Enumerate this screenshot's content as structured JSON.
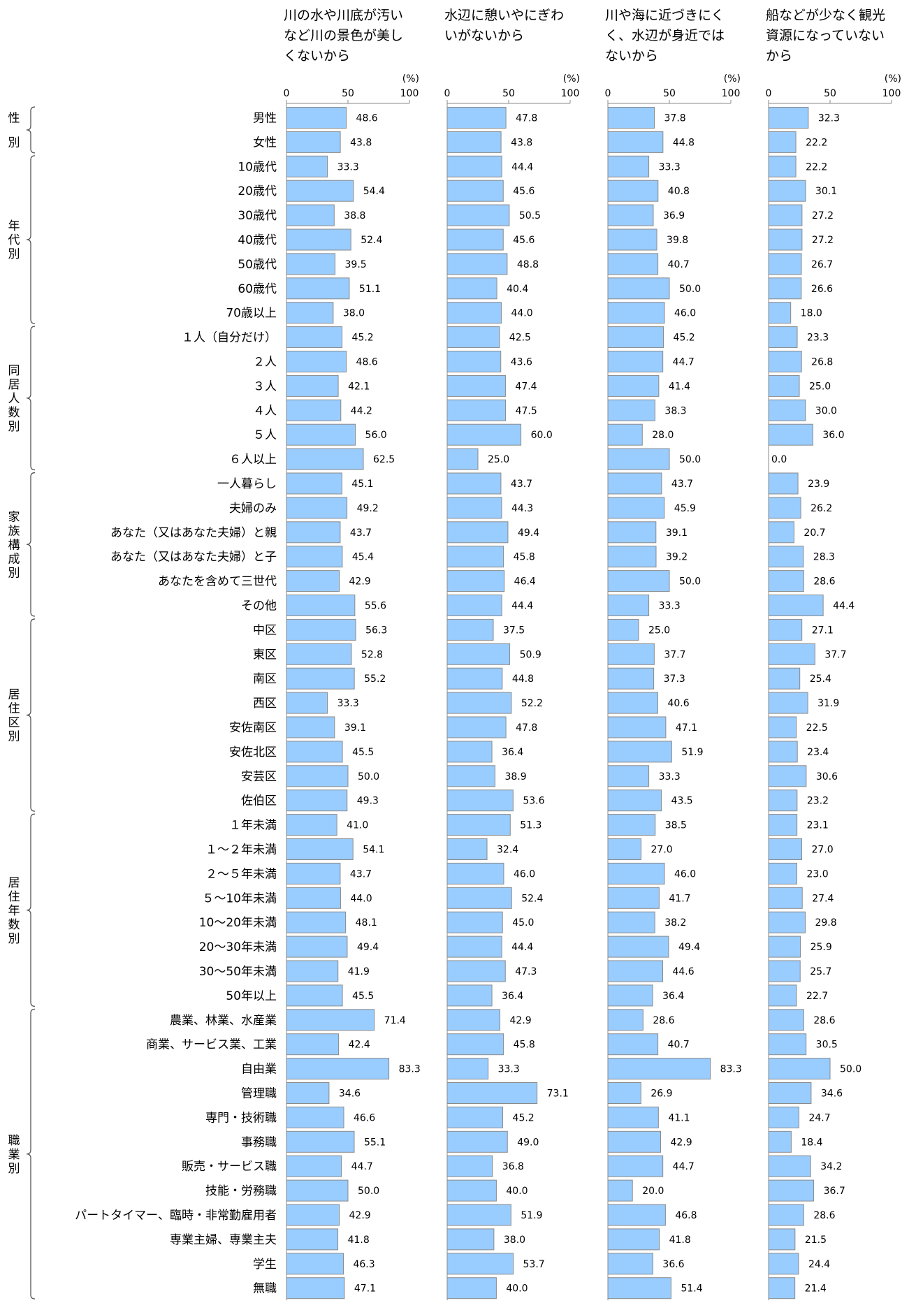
{
  "chart_data": {
    "type": "bar",
    "orientation": "horizontal",
    "unit_label": "(%)",
    "xlim": [
      0,
      100
    ],
    "xticks": [
      "0",
      "50",
      "100"
    ],
    "bar_color": "#99ccff",
    "categories": [
      "男性",
      "女性",
      "10歳代",
      "20歳代",
      "30歳代",
      "40歳代",
      "50歳代",
      "60歳代",
      "70歳以上",
      "１人（自分だけ）",
      "２人",
      "３人",
      "４人",
      "５人",
      "６人以上",
      "一人暮らし",
      "夫婦のみ",
      "あなた（又はあなた夫婦）と親",
      "あなた（又はあなた夫婦）と子",
      "あなたを含めて三世代",
      "その他",
      "中区",
      "東区",
      "南区",
      "西区",
      "安佐南区",
      "安佐北区",
      "安芸区",
      "佐伯区",
      "１年未満",
      "１～２年未満",
      "２～５年未満",
      "５～10年未満",
      "10～20年未満",
      "20～30年未満",
      "30～50年未満",
      "50年以上",
      "農業、林業、水産業",
      "商業、サービス業、工業",
      "自由業",
      "管理職",
      "専門・技術職",
      "事務職",
      "販売・サービス職",
      "技能・労務職",
      "パートタイマー、臨時・非常勤雇用者",
      "専業主婦、専業主夫",
      "学生",
      "無職"
    ],
    "groups": [
      {
        "label": "性別",
        "start": 0,
        "end": 1
      },
      {
        "label": "年代別",
        "start": 2,
        "end": 8
      },
      {
        "label": "同居人数別",
        "start": 9,
        "end": 14
      },
      {
        "label": "家族構成別",
        "start": 15,
        "end": 20
      },
      {
        "label": "居住区別",
        "start": 21,
        "end": 28
      },
      {
        "label": "居住年数別",
        "start": 29,
        "end": 36
      },
      {
        "label": "職業別",
        "start": 37,
        "end": 48
      }
    ],
    "series": [
      {
        "name": "川の水や川底が汚いなど川の景色が美しくないから",
        "title_lines": [
          "川の水や川底が汚い",
          "など川の景色が美し",
          "くないから"
        ],
        "values": [
          48.6,
          43.8,
          33.3,
          54.4,
          38.8,
          52.4,
          39.5,
          51.1,
          38.0,
          45.2,
          48.6,
          42.1,
          44.2,
          56.0,
          62.5,
          45.1,
          49.2,
          43.7,
          45.4,
          42.9,
          55.6,
          56.3,
          52.8,
          55.2,
          33.3,
          39.1,
          45.5,
          50.0,
          49.3,
          41.0,
          54.1,
          43.7,
          44.0,
          48.1,
          49.4,
          41.9,
          45.5,
          71.4,
          42.4,
          83.3,
          34.6,
          46.6,
          55.1,
          44.7,
          50.0,
          42.9,
          41.8,
          46.3,
          47.1
        ]
      },
      {
        "name": "水辺に憩いやにぎわいがないから",
        "title_lines": [
          "水辺に憩いやにぎわ",
          "いがないから"
        ],
        "values": [
          47.8,
          43.8,
          44.4,
          45.6,
          50.5,
          45.6,
          48.8,
          40.4,
          44.0,
          42.5,
          43.6,
          47.4,
          47.5,
          60.0,
          25.0,
          43.7,
          44.3,
          49.4,
          45.8,
          46.4,
          44.4,
          37.5,
          50.9,
          44.8,
          52.2,
          47.8,
          36.4,
          38.9,
          53.6,
          51.3,
          32.4,
          46.0,
          52.4,
          45.0,
          44.4,
          47.3,
          36.4,
          42.9,
          45.8,
          33.3,
          73.1,
          45.2,
          49.0,
          36.8,
          40.0,
          51.9,
          38.0,
          53.7,
          40.0
        ]
      },
      {
        "name": "川や海に近づきにくく、水辺が身近ではないから",
        "title_lines": [
          "川や海に近づきにく",
          "く、水辺が身近では",
          "ないから"
        ],
        "values": [
          37.8,
          44.8,
          33.3,
          40.8,
          36.9,
          39.8,
          40.7,
          50.0,
          46.0,
          45.2,
          44.7,
          41.4,
          38.3,
          28.0,
          50.0,
          43.7,
          45.9,
          39.1,
          39.2,
          50.0,
          33.3,
          25.0,
          37.7,
          37.3,
          40.6,
          47.1,
          51.9,
          33.3,
          43.5,
          38.5,
          27.0,
          46.0,
          41.7,
          38.2,
          49.4,
          44.6,
          36.4,
          28.6,
          40.7,
          83.3,
          26.9,
          41.1,
          42.9,
          44.7,
          20.0,
          46.8,
          41.8,
          36.6,
          51.4
        ]
      },
      {
        "name": "船などが少なく観光資源になっていないから",
        "title_lines": [
          "船などが少なく観光",
          "資源になっていない",
          "から"
        ],
        "values": [
          32.3,
          22.2,
          22.2,
          30.1,
          27.2,
          27.2,
          26.7,
          26.6,
          18.0,
          23.3,
          26.8,
          25.0,
          30.0,
          36.0,
          0.0,
          23.9,
          26.2,
          20.7,
          28.3,
          28.6,
          44.4,
          27.1,
          37.7,
          25.4,
          31.9,
          22.5,
          23.4,
          30.6,
          23.2,
          23.1,
          27.0,
          23.0,
          27.4,
          29.8,
          25.9,
          25.7,
          22.7,
          28.6,
          30.5,
          50.0,
          34.6,
          24.7,
          18.4,
          34.2,
          36.7,
          28.6,
          21.5,
          24.4,
          21.4
        ]
      }
    ]
  }
}
